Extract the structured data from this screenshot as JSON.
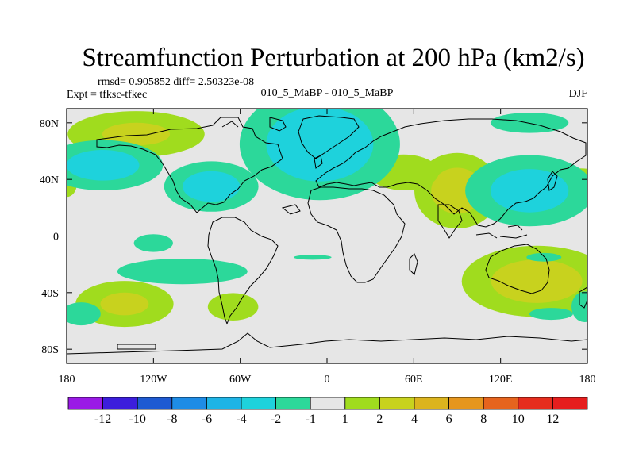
{
  "chart_data": {
    "type": "heatmap",
    "title": "Streamfunction Perturbation at 200 hPa (km2/s)",
    "stats_text": "rmsd= 0.905852 diff= 2.50323e-08",
    "experiment": "Expt = tfksc-tfkec",
    "case": "010_5_MaBP - 010_5_MaBP",
    "season": "DJF",
    "xlim": [
      -180,
      180
    ],
    "ylim": [
      -90,
      90
    ],
    "x_ticks": [
      {
        "value": -180,
        "label": "180"
      },
      {
        "value": -120,
        "label": "120W"
      },
      {
        "value": -60,
        "label": "60W"
      },
      {
        "value": 0,
        "label": "0"
      },
      {
        "value": 60,
        "label": "60E"
      },
      {
        "value": 120,
        "label": "120E"
      },
      {
        "value": 180,
        "label": "180"
      }
    ],
    "y_ticks": [
      {
        "value": 80,
        "label": "80N"
      },
      {
        "value": 40,
        "label": "40N"
      },
      {
        "value": 0,
        "label": "0"
      },
      {
        "value": -40,
        "label": "40S"
      },
      {
        "value": -80,
        "label": "80S"
      }
    ],
    "colorbar": {
      "labels": [
        "-12",
        "-10",
        "-8",
        "-6",
        "-4",
        "-2",
        "-1",
        "1",
        "2",
        "4",
        "6",
        "8",
        "10",
        "12"
      ],
      "colors": [
        "#9a1ae6",
        "#3c1edc",
        "#1e5ad2",
        "#1e8ce6",
        "#1eb4e6",
        "#1ed2dc",
        "#2cd89a",
        "#e6e6e6",
        "#a0dc1e",
        "#c8d21e",
        "#dcb41e",
        "#e6961e",
        "#e6641e",
        "#e62d1e",
        "#e61e1e"
      ]
    },
    "positive_anomalies": [
      {
        "lon": -132,
        "lat": 72,
        "rx": 35,
        "ry": 12,
        "peak": 2.5
      },
      {
        "lon": -140,
        "lat": -48,
        "rx": 25,
        "ry": 12,
        "peak": 2.5
      },
      {
        "lon": -65,
        "lat": -50,
        "rx": 18,
        "ry": 10,
        "peak": 1.6
      },
      {
        "lon": 90,
        "lat": 32,
        "rx": 20,
        "ry": 18,
        "peak": 3.0
      },
      {
        "lon": 145,
        "lat": -32,
        "rx": 35,
        "ry": 17,
        "peak": 3.0
      },
      {
        "lon": 53,
        "lat": 45,
        "rx": 25,
        "ry": 13,
        "peak": 1.6
      },
      {
        "lon": 175,
        "lat": 37,
        "rx": 15,
        "ry": 8,
        "peak": 2.5
      },
      {
        "lon": -180,
        "lat": 37,
        "rx": 6,
        "ry": 8,
        "peak": 2.0
      }
    ],
    "negative_anomalies": [
      {
        "lon": -5,
        "lat": 65,
        "rx": 35,
        "ry": 25,
        "peak": -3.5
      },
      {
        "lon": -155,
        "lat": 50,
        "rx": 28,
        "ry": 12,
        "peak": -3.0
      },
      {
        "lon": -80,
        "lat": 35,
        "rx": 22,
        "ry": 12,
        "peak": -3.0
      },
      {
        "lon": 140,
        "lat": 32,
        "rx": 30,
        "ry": 17,
        "peak": -3.0
      },
      {
        "lon": -120,
        "lat": -5,
        "rx": 15,
        "ry": 7,
        "peak": -1.5
      },
      {
        "lon": -100,
        "lat": -25,
        "rx": 50,
        "ry": 10,
        "peak": -1.5
      },
      {
        "lon": -170,
        "lat": -55,
        "rx": 15,
        "ry": 9,
        "peak": -1.5
      },
      {
        "lon": 178,
        "lat": -50,
        "rx": 10,
        "ry": 12,
        "peak": -1.5
      },
      {
        "lon": 140,
        "lat": 80,
        "rx": 30,
        "ry": 8,
        "peak": -1.5
      },
      {
        "lon": 150,
        "lat": -15,
        "rx": 20,
        "ry": 5,
        "peak": -1.2
      },
      {
        "lon": 155,
        "lat": -55,
        "rx": 25,
        "ry": 7,
        "peak": -1.2
      },
      {
        "lon": -10,
        "lat": -15,
        "rx": 30,
        "ry": 4,
        "peak": -1.1
      }
    ]
  }
}
